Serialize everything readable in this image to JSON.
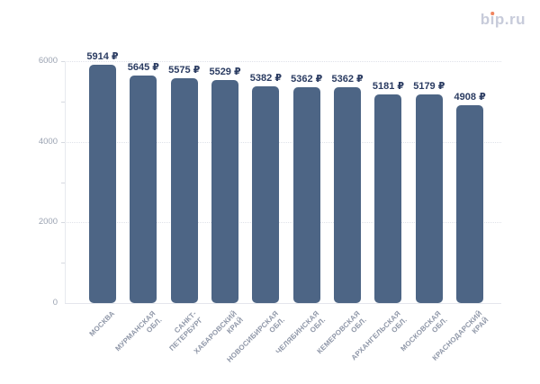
{
  "logo": {
    "text": "bip.ru",
    "color": "#c7cbda",
    "dot_color": "#f0845f"
  },
  "chart_data": {
    "type": "bar",
    "title": "",
    "xlabel": "",
    "ylabel": "",
    "categories": [
      "МОСКВА",
      "МУРМАНСКАЯ\nОБЛ.",
      "САНКТ-\nПЕТЕРБУРГ",
      "ХАБАРОВСКИЙ\nКРАЙ",
      "НОВОСИБИРСКАЯ\nОБЛ.",
      "ЧЕЛЯБИНСКАЯ\nОБЛ.",
      "КЕМЕРОВСКАЯ\nОБЛ.",
      "АРХАНГЕЛЬСКАЯ\nОБЛ.",
      "МОСКОВСКАЯ\nОБЛ.",
      "КРАСНОДАРСКИЙ\nКРАЙ"
    ],
    "values": [
      5914,
      5645,
      5575,
      5529,
      5382,
      5362,
      5362,
      5181,
      5179,
      4908
    ],
    "value_labels": [
      "5914 ₽",
      "5645 ₽",
      "5575 ₽",
      "5529 ₽",
      "5382 ₽",
      "5362 ₽",
      "5362 ₽",
      "5181 ₽",
      "5179 ₽",
      "4908 ₽"
    ],
    "unit": "₽",
    "ylim": [
      0,
      6000
    ],
    "yticks": [
      0,
      2000,
      4000,
      6000
    ],
    "ytick_labels": [
      "0",
      "2000",
      "4000",
      "6000"
    ],
    "minor_ticks": [
      1000,
      3000,
      5000
    ],
    "grid_values": [
      2000,
      4000,
      6000
    ],
    "grid": true,
    "legend": false,
    "colors": {
      "bar": "#4d6585",
      "value_label": "#2b3c62",
      "axis_tick_label": "#9aa2b1",
      "category_label": "#8f97a8",
      "gridline": "#dfe2e9",
      "axis_line": "#e7e9ee"
    }
  }
}
